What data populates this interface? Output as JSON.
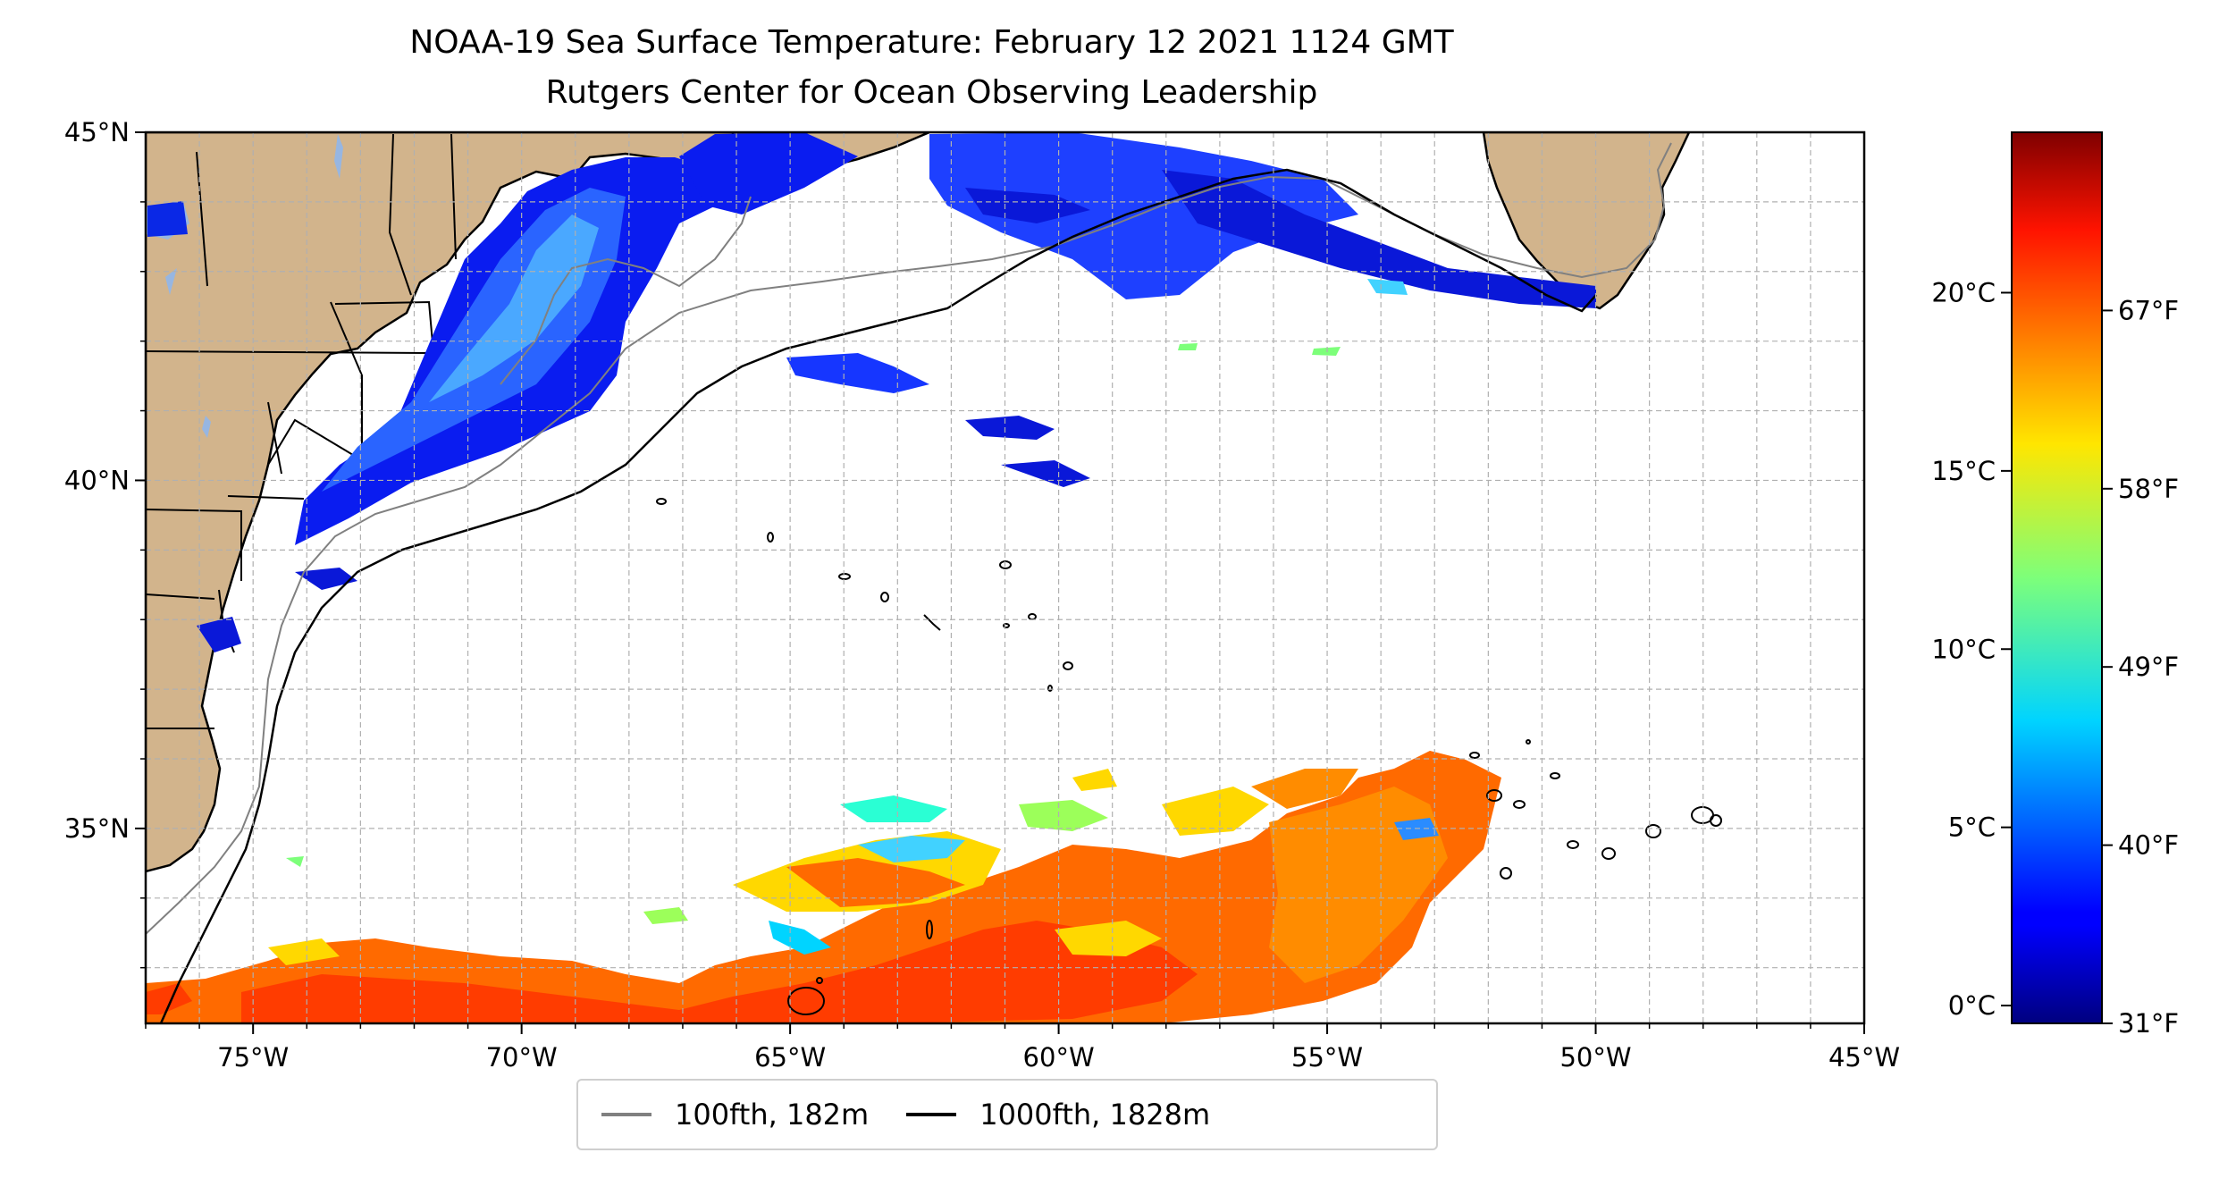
{
  "title": "NOAA-19 Sea Surface Temperature: February 12 2021 1124 GMT",
  "subtitle": "Rutgers Center for Ocean Observing Leadership",
  "colors": {
    "land": "#d2b48c",
    "lake": "#97b6e1",
    "grid": "#b0b0b0",
    "isobath_100": "#808080",
    "isobath_1000": "#000000"
  },
  "map": {
    "extent": {
      "lon_min": -77,
      "lon_max": -45,
      "lat_min": 32.2,
      "lat_max": 45
    },
    "lon_ticks": [
      {
        "value": -75,
        "label": "75°W"
      },
      {
        "value": -70,
        "label": "70°W"
      },
      {
        "value": -65,
        "label": "65°W"
      },
      {
        "value": -60,
        "label": "60°W"
      },
      {
        "value": -55,
        "label": "55°W"
      },
      {
        "value": -50,
        "label": "50°W"
      },
      {
        "value": -45,
        "label": "45°W"
      }
    ],
    "lat_ticks": [
      {
        "value": 45,
        "label": "45°N"
      },
      {
        "value": 40,
        "label": "40°N"
      },
      {
        "value": 35,
        "label": "35°N"
      }
    ],
    "grid": true
  },
  "colorbar": {
    "colormap": "jet",
    "min_c": -0.5,
    "max_c": 24.5,
    "celsius_ticks": [
      {
        "value": 0,
        "label": "0°C"
      },
      {
        "value": 5,
        "label": "5°C"
      },
      {
        "value": 10,
        "label": "10°C"
      },
      {
        "value": 15,
        "label": "15°C"
      },
      {
        "value": 20,
        "label": "20°C"
      }
    ],
    "fahrenheit_ticks": [
      {
        "value_c": -0.5,
        "label": "31°F"
      },
      {
        "value_c": 4.5,
        "label": "40°F"
      },
      {
        "value_c": 9.5,
        "label": "49°F"
      },
      {
        "value_c": 14.5,
        "label": "58°F"
      },
      {
        "value_c": 19.5,
        "label": "67°F"
      }
    ]
  },
  "legend": {
    "items": [
      {
        "label": "100fth, 182m",
        "color": "#808080"
      },
      {
        "label": "1000fth, 1828m",
        "color": "#000000"
      }
    ]
  }
}
